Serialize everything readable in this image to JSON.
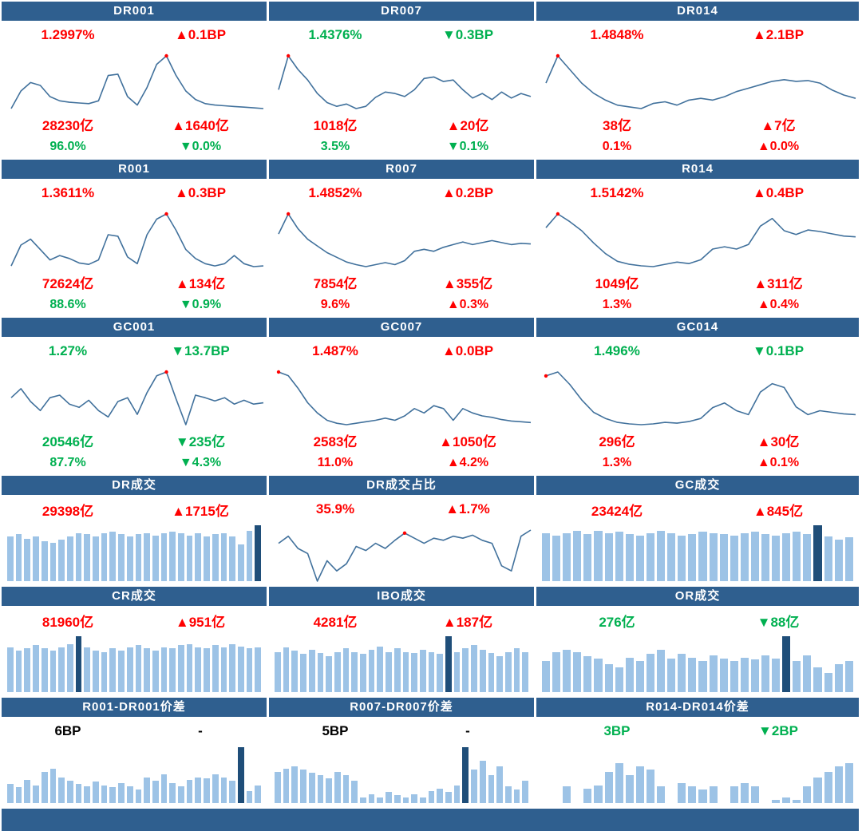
{
  "colors": {
    "header_bg": "#2f5f8f",
    "up_red": "#ff0000",
    "down_green": "#00b050",
    "neutral_black": "#000000",
    "line": "#41719c",
    "dot": "#ff0000",
    "bar_light": "#9dc3e6",
    "bar_dark": "#1f4e79"
  },
  "chart_data": [
    {
      "type": "line",
      "title": "DR001",
      "stats": [
        {
          "name": "rate",
          "text": "1.2997%",
          "color": "#ff0000"
        },
        {
          "name": "rate_change",
          "text": "▲0.1BP",
          "dir": "up",
          "color": "#ff0000"
        },
        {
          "name": "volume",
          "text": "28230亿",
          "color": "#ff0000"
        },
        {
          "name": "volume_change",
          "text": "▲1640亿",
          "dir": "up",
          "color": "#ff0000"
        },
        {
          "name": "share",
          "text": "96.0%",
          "color": "#00b050"
        },
        {
          "name": "share_change",
          "text": "▼0.0%",
          "dir": "down",
          "color": "#00b050"
        }
      ],
      "series": [
        0.25,
        0.5,
        0.62,
        0.58,
        0.42,
        0.36,
        0.34,
        0.33,
        0.32,
        0.36,
        0.72,
        0.74,
        0.42,
        0.3,
        0.55,
        0.88,
        1.0,
        0.72,
        0.5,
        0.38,
        0.32,
        0.3,
        0.29,
        0.28,
        0.27,
        0.26,
        0.25
      ],
      "dot_index": 16
    },
    {
      "type": "line",
      "title": "DR007",
      "stats": [
        {
          "name": "rate",
          "text": "1.4376%",
          "color": "#00b050"
        },
        {
          "name": "rate_change",
          "text": "▼0.3BP",
          "dir": "down",
          "color": "#00b050"
        },
        {
          "name": "volume",
          "text": "1018亿",
          "color": "#ff0000"
        },
        {
          "name": "volume_change",
          "text": "▲20亿",
          "dir": "up",
          "color": "#ff0000"
        },
        {
          "name": "share",
          "text": "3.5%",
          "color": "#00b050"
        },
        {
          "name": "share_change",
          "text": "▼0.1%",
          "dir": "down",
          "color": "#00b050"
        }
      ],
      "series": [
        0.55,
        1.0,
        0.82,
        0.68,
        0.5,
        0.38,
        0.33,
        0.36,
        0.3,
        0.33,
        0.45,
        0.52,
        0.5,
        0.46,
        0.55,
        0.7,
        0.72,
        0.66,
        0.68,
        0.55,
        0.44,
        0.5,
        0.42,
        0.52,
        0.44,
        0.5,
        0.46
      ],
      "dot_index": 1
    },
    {
      "type": "line",
      "title": "DR014",
      "stats": [
        {
          "name": "rate",
          "text": "1.4848%",
          "color": "#ff0000"
        },
        {
          "name": "rate_change",
          "text": "▲2.1BP",
          "dir": "up",
          "color": "#ff0000"
        },
        {
          "name": "volume",
          "text": "38亿",
          "color": "#ff0000"
        },
        {
          "name": "volume_change",
          "text": "▲7亿",
          "dir": "up",
          "color": "#ff0000"
        },
        {
          "name": "share",
          "text": "0.1%",
          "color": "#ff0000"
        },
        {
          "name": "share_change",
          "text": "▲0.0%",
          "dir": "up",
          "color": "#ff0000"
        }
      ],
      "series": [
        0.68,
        1.0,
        0.84,
        0.68,
        0.56,
        0.48,
        0.42,
        0.4,
        0.38,
        0.44,
        0.46,
        0.42,
        0.48,
        0.5,
        0.48,
        0.52,
        0.58,
        0.62,
        0.66,
        0.7,
        0.72,
        0.7,
        0.71,
        0.68,
        0.6,
        0.54,
        0.5
      ],
      "dot_index": 1
    },
    {
      "type": "line",
      "title": "R001",
      "stats": [
        {
          "name": "rate",
          "text": "1.3611%",
          "color": "#ff0000"
        },
        {
          "name": "rate_change",
          "text": "▲0.3BP",
          "dir": "up",
          "color": "#ff0000"
        },
        {
          "name": "volume",
          "text": "72624亿",
          "color": "#ff0000"
        },
        {
          "name": "volume_change",
          "text": "▲134亿",
          "dir": "up",
          "color": "#ff0000"
        },
        {
          "name": "share",
          "text": "88.6%",
          "color": "#00b050"
        },
        {
          "name": "share_change",
          "text": "▼0.9%",
          "dir": "down",
          "color": "#00b050"
        }
      ],
      "series": [
        0.3,
        0.58,
        0.66,
        0.52,
        0.38,
        0.44,
        0.4,
        0.34,
        0.32,
        0.38,
        0.72,
        0.7,
        0.42,
        0.33,
        0.72,
        0.93,
        1.0,
        0.78,
        0.52,
        0.4,
        0.33,
        0.3,
        0.33,
        0.44,
        0.33,
        0.29,
        0.3
      ],
      "dot_index": 16
    },
    {
      "type": "line",
      "title": "R007",
      "stats": [
        {
          "name": "rate",
          "text": "1.4852%",
          "color": "#ff0000"
        },
        {
          "name": "rate_change",
          "text": "▲0.2BP",
          "dir": "up",
          "color": "#ff0000"
        },
        {
          "name": "volume",
          "text": "7854亿",
          "color": "#ff0000"
        },
        {
          "name": "volume_change",
          "text": "▲355亿",
          "dir": "up",
          "color": "#ff0000"
        },
        {
          "name": "share",
          "text": "9.6%",
          "color": "#ff0000"
        },
        {
          "name": "share_change",
          "text": "▲0.3%",
          "dir": "up",
          "color": "#ff0000"
        }
      ],
      "series": [
        0.7,
        1.0,
        0.78,
        0.62,
        0.52,
        0.42,
        0.35,
        0.28,
        0.24,
        0.21,
        0.24,
        0.27,
        0.24,
        0.3,
        0.44,
        0.47,
        0.44,
        0.5,
        0.54,
        0.58,
        0.54,
        0.57,
        0.6,
        0.57,
        0.54,
        0.56,
        0.55
      ],
      "dot_index": 1
    },
    {
      "type": "line",
      "title": "R014",
      "stats": [
        {
          "name": "rate",
          "text": "1.5142%",
          "color": "#ff0000"
        },
        {
          "name": "rate_change",
          "text": "▲0.4BP",
          "dir": "up",
          "color": "#ff0000"
        },
        {
          "name": "volume",
          "text": "1049亿",
          "color": "#ff0000"
        },
        {
          "name": "volume_change",
          "text": "▲311亿",
          "dir": "up",
          "color": "#ff0000"
        },
        {
          "name": "share",
          "text": "1.3%",
          "color": "#ff0000"
        },
        {
          "name": "share_change",
          "text": "▲0.4%",
          "dir": "up",
          "color": "#ff0000"
        }
      ],
      "series": [
        0.82,
        1.0,
        0.9,
        0.78,
        0.62,
        0.48,
        0.38,
        0.34,
        0.32,
        0.31,
        0.34,
        0.37,
        0.35,
        0.4,
        0.54,
        0.57,
        0.54,
        0.6,
        0.84,
        0.94,
        0.78,
        0.73,
        0.79,
        0.77,
        0.74,
        0.71,
        0.7
      ],
      "dot_index": 1
    },
    {
      "type": "line",
      "title": "GC001",
      "stats": [
        {
          "name": "rate",
          "text": "1.27%",
          "color": "#00b050"
        },
        {
          "name": "rate_change",
          "text": "▼13.7BP",
          "dir": "down",
          "color": "#00b050"
        },
        {
          "name": "volume",
          "text": "20546亿",
          "color": "#00b050"
        },
        {
          "name": "volume_change",
          "text": "▼235亿",
          "dir": "down",
          "color": "#00b050"
        },
        {
          "name": "share",
          "text": "87.7%",
          "color": "#00b050"
        },
        {
          "name": "share_change",
          "text": "▼4.3%",
          "dir": "down",
          "color": "#00b050"
        }
      ],
      "series": [
        0.6,
        0.74,
        0.54,
        0.4,
        0.6,
        0.64,
        0.5,
        0.45,
        0.56,
        0.4,
        0.3,
        0.54,
        0.6,
        0.34,
        0.68,
        0.94,
        1.0,
        0.58,
        0.18,
        0.64,
        0.6,
        0.55,
        0.6,
        0.5,
        0.56,
        0.5,
        0.52
      ],
      "dot_index": 16
    },
    {
      "type": "line",
      "title": "GC007",
      "stats": [
        {
          "name": "rate",
          "text": "1.487%",
          "color": "#ff0000"
        },
        {
          "name": "rate_change",
          "text": "▲0.0BP",
          "dir": "up",
          "color": "#ff0000"
        },
        {
          "name": "volume",
          "text": "2583亿",
          "color": "#ff0000"
        },
        {
          "name": "volume_change",
          "text": "▲1050亿",
          "dir": "up",
          "color": "#ff0000"
        },
        {
          "name": "share",
          "text": "11.0%",
          "color": "#ff0000"
        },
        {
          "name": "share_change",
          "text": "▲4.2%",
          "dir": "up",
          "color": "#ff0000"
        }
      ],
      "series": [
        1.0,
        0.95,
        0.78,
        0.58,
        0.44,
        0.34,
        0.3,
        0.28,
        0.3,
        0.32,
        0.34,
        0.37,
        0.34,
        0.4,
        0.5,
        0.44,
        0.54,
        0.5,
        0.34,
        0.5,
        0.44,
        0.4,
        0.38,
        0.35,
        0.33,
        0.32,
        0.31
      ],
      "dot_index": 0
    },
    {
      "type": "line",
      "title": "GC014",
      "stats": [
        {
          "name": "rate",
          "text": "1.496%",
          "color": "#00b050"
        },
        {
          "name": "rate_change",
          "text": "▼0.1BP",
          "dir": "down",
          "color": "#00b050"
        },
        {
          "name": "volume",
          "text": "296亿",
          "color": "#ff0000"
        },
        {
          "name": "volume_change",
          "text": "▲30亿",
          "dir": "up",
          "color": "#ff0000"
        },
        {
          "name": "share",
          "text": "1.3%",
          "color": "#ff0000"
        },
        {
          "name": "share_change",
          "text": "▲0.1%",
          "dir": "up",
          "color": "#ff0000"
        }
      ],
      "series": [
        0.95,
        1.0,
        0.84,
        0.64,
        0.48,
        0.4,
        0.35,
        0.33,
        0.32,
        0.33,
        0.35,
        0.34,
        0.36,
        0.4,
        0.54,
        0.6,
        0.5,
        0.45,
        0.74,
        0.85,
        0.8,
        0.55,
        0.45,
        0.5,
        0.48,
        0.46,
        0.45
      ],
      "dot_index": 0
    },
    {
      "type": "bar",
      "title": "DR成交",
      "stats": [
        {
          "name": "volume",
          "text": "29398亿",
          "color": "#ff0000"
        },
        {
          "name": "volume_change",
          "text": "▲1715亿",
          "dir": "up",
          "color": "#ff0000"
        }
      ],
      "values": [
        0.8,
        0.84,
        0.76,
        0.8,
        0.72,
        0.68,
        0.74,
        0.8,
        0.86,
        0.84,
        0.8,
        0.86,
        0.88,
        0.84,
        0.8,
        0.84,
        0.86,
        0.82,
        0.86,
        0.88,
        0.86,
        0.82,
        0.86,
        0.8,
        0.84,
        0.86,
        0.8,
        0.66,
        0.9,
        1.0
      ],
      "highlight_index": 29
    },
    {
      "type": "line",
      "title": "DR成交占比",
      "stats": [
        {
          "name": "share",
          "text": "35.9%",
          "color": "#ff0000"
        },
        {
          "name": "share_change",
          "text": "▲1.7%",
          "dir": "up",
          "color": "#ff0000"
        }
      ],
      "series": [
        0.55,
        0.62,
        0.5,
        0.45,
        0.18,
        0.38,
        0.28,
        0.35,
        0.52,
        0.48,
        0.55,
        0.5,
        0.58,
        0.65,
        0.6,
        0.55,
        0.6,
        0.58,
        0.62,
        0.6,
        0.63,
        0.58,
        0.55,
        0.33,
        0.28,
        0.62,
        0.68
      ],
      "dot_index": 13
    },
    {
      "type": "bar",
      "title": "GC成交",
      "stats": [
        {
          "name": "volume",
          "text": "23424亿",
          "color": "#ff0000"
        },
        {
          "name": "volume_change",
          "text": "▲845亿",
          "dir": "up",
          "color": "#ff0000"
        }
      ],
      "values": [
        0.86,
        0.82,
        0.86,
        0.9,
        0.84,
        0.9,
        0.86,
        0.88,
        0.84,
        0.82,
        0.86,
        0.9,
        0.86,
        0.82,
        0.84,
        0.88,
        0.86,
        0.84,
        0.82,
        0.86,
        0.88,
        0.84,
        0.82,
        0.86,
        0.88,
        0.84,
        1.0,
        0.8,
        0.74,
        0.78
      ],
      "highlight_index": 26
    },
    {
      "type": "bar",
      "title": "CR成交",
      "stats": [
        {
          "name": "volume",
          "text": "81960亿",
          "color": "#ff0000"
        },
        {
          "name": "volume_change",
          "text": "▲951亿",
          "dir": "up",
          "color": "#ff0000"
        }
      ],
      "values": [
        0.8,
        0.74,
        0.78,
        0.84,
        0.78,
        0.74,
        0.8,
        0.86,
        1.0,
        0.8,
        0.74,
        0.72,
        0.78,
        0.74,
        0.8,
        0.84,
        0.78,
        0.74,
        0.8,
        0.78,
        0.84,
        0.86,
        0.8,
        0.78,
        0.84,
        0.8,
        0.86,
        0.82,
        0.78,
        0.8
      ],
      "highlight_index": 8
    },
    {
      "type": "bar",
      "title": "IBO成交",
      "stats": [
        {
          "name": "volume",
          "text": "4281亿",
          "color": "#ff0000"
        },
        {
          "name": "volume_change",
          "text": "▲187亿",
          "dir": "up",
          "color": "#ff0000"
        }
      ],
      "values": [
        0.72,
        0.8,
        0.74,
        0.68,
        0.76,
        0.7,
        0.64,
        0.72,
        0.78,
        0.72,
        0.68,
        0.76,
        0.82,
        0.72,
        0.78,
        0.72,
        0.7,
        0.76,
        0.72,
        0.68,
        1.0,
        0.72,
        0.78,
        0.84,
        0.76,
        0.7,
        0.64,
        0.72,
        0.78,
        0.72
      ],
      "highlight_index": 20
    },
    {
      "type": "bar",
      "title": "OR成交",
      "stats": [
        {
          "name": "volume",
          "text": "276亿",
          "color": "#00b050"
        },
        {
          "name": "volume_change",
          "text": "▼88亿",
          "dir": "down",
          "color": "#00b050"
        }
      ],
      "values": [
        0.56,
        0.72,
        0.76,
        0.72,
        0.64,
        0.6,
        0.5,
        0.44,
        0.62,
        0.56,
        0.68,
        0.76,
        0.6,
        0.68,
        0.62,
        0.56,
        0.66,
        0.6,
        0.56,
        0.62,
        0.58,
        0.66,
        0.6,
        1.0,
        0.56,
        0.66,
        0.44,
        0.34,
        0.5,
        0.56
      ],
      "highlight_index": 23
    },
    {
      "type": "bar",
      "title": "R001-DR001价差",
      "stats": [
        {
          "name": "spread",
          "text": "6BP",
          "color": "#000000"
        },
        {
          "name": "spread_change",
          "text": "-",
          "dir": "flat",
          "color": "#000000"
        }
      ],
      "values": [
        0.34,
        0.28,
        0.42,
        0.32,
        0.56,
        0.62,
        0.46,
        0.4,
        0.34,
        0.3,
        0.38,
        0.32,
        0.28,
        0.36,
        0.3,
        0.24,
        0.46,
        0.4,
        0.52,
        0.36,
        0.3,
        0.42,
        0.46,
        0.44,
        0.52,
        0.46,
        0.4,
        1.0,
        0.22,
        0.32
      ],
      "highlight_index": 27
    },
    {
      "type": "bar",
      "title": "R007-DR007价差",
      "stats": [
        {
          "name": "spread",
          "text": "5BP",
          "color": "#000000"
        },
        {
          "name": "spread_change",
          "text": "-",
          "dir": "flat",
          "color": "#000000"
        }
      ],
      "values": [
        0.56,
        0.62,
        0.66,
        0.6,
        0.54,
        0.5,
        0.44,
        0.56,
        0.5,
        0.4,
        0.1,
        0.16,
        0.1,
        0.2,
        0.14,
        0.1,
        0.16,
        0.1,
        0.22,
        0.26,
        0.2,
        0.32,
        1.0,
        0.6,
        0.76,
        0.5,
        0.66,
        0.3,
        0.24,
        0.4
      ],
      "highlight_index": 22
    },
    {
      "type": "bar",
      "title": "R014-DR014价差",
      "stats": [
        {
          "name": "spread",
          "text": "3BP",
          "color": "#00b050"
        },
        {
          "name": "spread_change",
          "text": "▼2BP",
          "dir": "down",
          "color": "#00b050"
        }
      ],
      "values": [
        0.0,
        0.0,
        0.3,
        0.0,
        0.26,
        0.32,
        0.56,
        0.72,
        0.5,
        0.66,
        0.6,
        0.3,
        0.0,
        0.36,
        0.3,
        0.24,
        0.3,
        0.0,
        0.3,
        0.36,
        0.3,
        0.0,
        0.06,
        0.1,
        0.06,
        0.3,
        0.46,
        0.56,
        0.66,
        0.72
      ],
      "highlight_index": null
    }
  ]
}
